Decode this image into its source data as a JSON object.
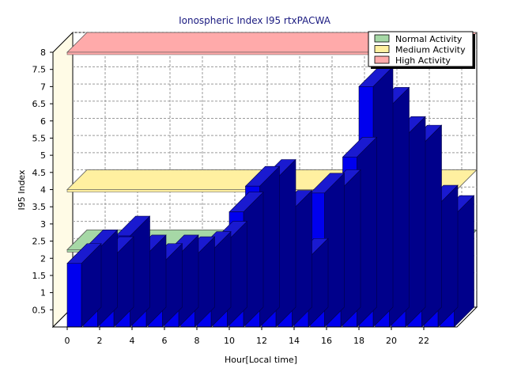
{
  "chart_data": {
    "type": "bar",
    "title": "Ionospheric Index I95 rtxPACWA",
    "xlabel": "Hour[Local time]",
    "ylabel": "I95 Index",
    "x": [
      0,
      1,
      2,
      3,
      4,
      5,
      6,
      7,
      8,
      9,
      10,
      11,
      12,
      13,
      14,
      15,
      16,
      17,
      18,
      19,
      20,
      21,
      22,
      23
    ],
    "values": [
      1.85,
      2.25,
      2.05,
      2.65,
      2.1,
      1.85,
      2.1,
      2.05,
      2.2,
      2.5,
      3.35,
      4.1,
      4.3,
      3.4,
      2.0,
      3.9,
      4.0,
      4.95,
      7.0,
      6.4,
      5.55,
      5.3,
      3.55,
      3.25
    ],
    "ylim": [
      0,
      8
    ],
    "yticks": [
      0.5,
      1,
      1.5,
      2,
      2.5,
      3,
      3.5,
      4,
      4.5,
      5,
      5.5,
      6,
      6.5,
      7,
      7.5,
      8
    ],
    "xticks": [
      0,
      2,
      4,
      6,
      8,
      10,
      12,
      14,
      16,
      18,
      20,
      22
    ],
    "grid": true,
    "view": "3d",
    "bar_color": "#0000ee",
    "legend_position": "top-right",
    "legend": [
      {
        "label": "Normal Activity",
        "color": "#a6d8a6"
      },
      {
        "label": "Medium Activity",
        "color": "#fff0a0"
      },
      {
        "label": "High Activity",
        "color": "#ffaaaa"
      }
    ],
    "bands": [
      {
        "name": "Normal Activity",
        "level": 2.25,
        "color": "#a6d8a6"
      },
      {
        "name": "Medium Activity",
        "level": 4.0,
        "color": "#fff0a0"
      },
      {
        "name": "High Activity",
        "level": 8.0,
        "color": "#ffaaaa"
      }
    ]
  }
}
